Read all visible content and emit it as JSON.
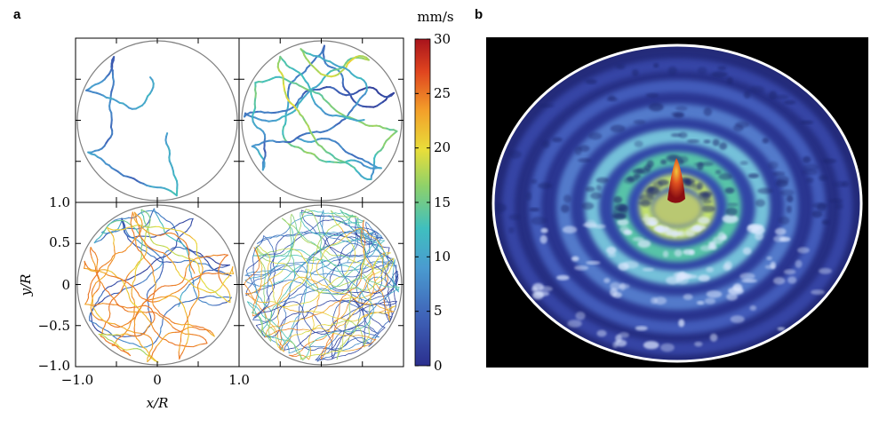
{
  "figure": {
    "panel_a_label": "a",
    "panel_b_label": "b"
  },
  "chart_data": [
    {
      "type": "scatter",
      "description_role": "panel-a",
      "grid_layout": "2x2",
      "xlabel": "x/R",
      "ylabel": "y/R",
      "xlim": [
        -1.0,
        1.0
      ],
      "ylim": [
        -1.0,
        1.0
      ],
      "x_ticks": [
        "−1.0",
        "0",
        "1.0"
      ],
      "y_ticks": [
        "1.0",
        "0.5",
        "0",
        "−0.5",
        "−1.0"
      ],
      "colorbar": {
        "unit": "mm/s",
        "range": [
          0,
          30
        ],
        "ticks": [
          "30",
          "25",
          "20",
          "15",
          "10",
          "5",
          "0"
        ],
        "colormap": [
          "#2b2f8e",
          "#3f63b8",
          "#4a9bd0",
          "#3fbfbf",
          "#8ed16a",
          "#e8de3a",
          "#f3a02a",
          "#e0451f",
          "#a8131c"
        ]
      },
      "subplots": [
        {
          "position": "top-left",
          "trajectory_density": 1
        },
        {
          "position": "top-right",
          "trajectory_density": 4
        },
        {
          "position": "bottom-left",
          "trajectory_density": 10
        },
        {
          "position": "bottom-right",
          "trajectory_density": 24
        }
      ]
    },
    {
      "type": "heatmap",
      "description_role": "panel-b",
      "colors": {
        "background": "#000000",
        "boundary": "#ffffff",
        "low": "#2f3a9a",
        "mid": "#4fd0c8",
        "high": "#c62020"
      }
    }
  ]
}
